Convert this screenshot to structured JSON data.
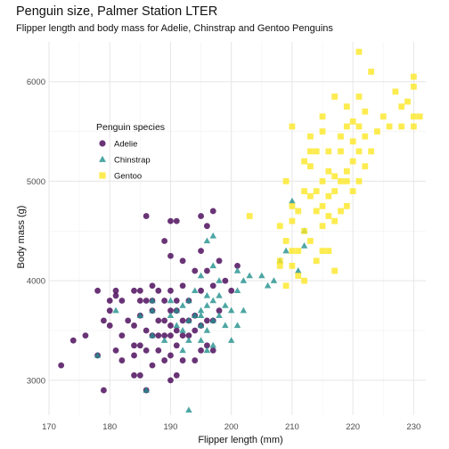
{
  "chart_data": {
    "type": "scatter",
    "title": "Penguin size, Palmer Station LTER",
    "subtitle": "Flipper length and body mass for Adelie, Chinstrap and Gentoo Penguins",
    "xlabel": "Flipper length (mm)",
    "ylabel": "Body mass (g)",
    "xlim": [
      170,
      232
    ],
    "ylim": [
      2650,
      6400
    ],
    "x_ticks": [
      170,
      180,
      190,
      200,
      210,
      220,
      230
    ],
    "y_ticks": [
      3000,
      4000,
      5000,
      6000
    ],
    "grid": true,
    "legend": {
      "title": "Penguin species",
      "placement": "left-center inside plot"
    },
    "series": [
      {
        "name": "Adelie",
        "color": "#440154",
        "marker": "circle",
        "points": [
          [
            172,
            3150
          ],
          [
            174,
            3400
          ],
          [
            176,
            3450
          ],
          [
            178,
            3250
          ],
          [
            178,
            3900
          ],
          [
            179,
            2900
          ],
          [
            179,
            3600
          ],
          [
            180,
            3800
          ],
          [
            180,
            3550
          ],
          [
            180,
            3700
          ],
          [
            181,
            3300
          ],
          [
            181,
            3850
          ],
          [
            181,
            3900
          ],
          [
            182,
            3200
          ],
          [
            182,
            3450
          ],
          [
            182,
            3800
          ],
          [
            183,
            3600
          ],
          [
            184,
            3050
          ],
          [
            184,
            3250
          ],
          [
            184,
            3350
          ],
          [
            184,
            3550
          ],
          [
            184,
            3900
          ],
          [
            185,
            3050
          ],
          [
            185,
            3350
          ],
          [
            185,
            3650
          ],
          [
            185,
            3800
          ],
          [
            185,
            3900
          ],
          [
            186,
            2900
          ],
          [
            186,
            3300
          ],
          [
            186,
            3500
          ],
          [
            186,
            3800
          ],
          [
            186,
            4650
          ],
          [
            187,
            3150
          ],
          [
            187,
            3450
          ],
          [
            187,
            3700
          ],
          [
            187,
            3800
          ],
          [
            187,
            3950
          ],
          [
            188,
            3300
          ],
          [
            188,
            3450
          ],
          [
            188,
            3600
          ],
          [
            188,
            3900
          ],
          [
            189,
            3200
          ],
          [
            189,
            3450
          ],
          [
            189,
            3600
          ],
          [
            189,
            3800
          ],
          [
            189,
            4400
          ],
          [
            190,
            3000
          ],
          [
            190,
            3250
          ],
          [
            190,
            3450
          ],
          [
            190,
            3550
          ],
          [
            190,
            3700
          ],
          [
            190,
            3900
          ],
          [
            190,
            4250
          ],
          [
            190,
            4600
          ],
          [
            191,
            3050
          ],
          [
            191,
            3350
          ],
          [
            191,
            3500
          ],
          [
            191,
            3700
          ],
          [
            191,
            3800
          ],
          [
            191,
            4600
          ],
          [
            192,
            3200
          ],
          [
            192,
            3450
          ],
          [
            192,
            3600
          ],
          [
            192,
            3950
          ],
          [
            192,
            4200
          ],
          [
            193,
            3450
          ],
          [
            193,
            3600
          ],
          [
            193,
            3800
          ],
          [
            194,
            3200
          ],
          [
            194,
            3500
          ],
          [
            194,
            3650
          ],
          [
            194,
            4100
          ],
          [
            195,
            3300
          ],
          [
            195,
            3550
          ],
          [
            195,
            3900
          ],
          [
            195,
            4300
          ],
          [
            195,
            4650
          ],
          [
            196,
            3350
          ],
          [
            196,
            3600
          ],
          [
            196,
            4100
          ],
          [
            196,
            4550
          ],
          [
            197,
            3300
          ],
          [
            197,
            3600
          ],
          [
            197,
            3950
          ],
          [
            197,
            4700
          ],
          [
            198,
            3700
          ],
          [
            198,
            4200
          ],
          [
            199,
            4000
          ],
          [
            200,
            3900
          ],
          [
            201,
            4150
          ]
        ]
      },
      {
        "name": "Chinstrap",
        "color": "#21908C",
        "marker": "triangle",
        "points": [
          [
            178,
            3250
          ],
          [
            181,
            3700
          ],
          [
            185,
            3650
          ],
          [
            186,
            2900
          ],
          [
            187,
            3450
          ],
          [
            187,
            3700
          ],
          [
            187,
            3800
          ],
          [
            189,
            3400
          ],
          [
            190,
            3650
          ],
          [
            190,
            3800
          ],
          [
            191,
            3550
          ],
          [
            191,
            3700
          ],
          [
            192,
            3300
          ],
          [
            192,
            3500
          ],
          [
            192,
            3750
          ],
          [
            193,
            3400
          ],
          [
            193,
            3600
          ],
          [
            193,
            3800
          ],
          [
            194,
            3650
          ],
          [
            194,
            3900
          ],
          [
            195,
            3400
          ],
          [
            195,
            3550
          ],
          [
            195,
            3650
          ],
          [
            195,
            3700
          ],
          [
            195,
            4050
          ],
          [
            196,
            3300
          ],
          [
            196,
            3500
          ],
          [
            196,
            3750
          ],
          [
            196,
            3850
          ],
          [
            196,
            4400
          ],
          [
            197,
            3350
          ],
          [
            197,
            3600
          ],
          [
            197,
            3800
          ],
          [
            197,
            4150
          ],
          [
            197,
            4450
          ],
          [
            198,
            3650
          ],
          [
            198,
            3850
          ],
          [
            198,
            4000
          ],
          [
            199,
            3550
          ],
          [
            199,
            3750
          ],
          [
            200,
            3400
          ],
          [
            200,
            3700
          ],
          [
            201,
            3550
          ],
          [
            201,
            3900
          ],
          [
            201,
            4100
          ],
          [
            202,
            3700
          ],
          [
            202,
            4000
          ],
          [
            203,
            4050
          ],
          [
            205,
            4050
          ],
          [
            206,
            3950
          ],
          [
            207,
            4000
          ],
          [
            208,
            4200
          ],
          [
            209,
            4300
          ],
          [
            210,
            4800
          ],
          [
            211,
            4100
          ],
          [
            212,
            4350
          ],
          [
            212,
            4500
          ],
          [
            193,
            2700
          ]
        ]
      },
      {
        "name": "Gentoo",
        "color": "#FDE725",
        "marker": "square",
        "points": [
          [
            203,
            4650
          ],
          [
            208,
            4550
          ],
          [
            208,
            4200
          ],
          [
            209,
            4400
          ],
          [
            209,
            3950
          ],
          [
            210,
            4150
          ],
          [
            210,
            4300
          ],
          [
            210,
            4600
          ],
          [
            210,
            4750
          ],
          [
            210,
            5550
          ],
          [
            211,
            4050
          ],
          [
            211,
            4300
          ],
          [
            211,
            4700
          ],
          [
            212,
            4900
          ],
          [
            212,
            5200
          ],
          [
            212,
            4500
          ],
          [
            213,
            4400
          ],
          [
            213,
            4850
          ],
          [
            213,
            5150
          ],
          [
            213,
            5450
          ],
          [
            214,
            4700
          ],
          [
            214,
            4900
          ],
          [
            214,
            4200
          ],
          [
            214,
            5300
          ],
          [
            215,
            4550
          ],
          [
            215,
            4750
          ],
          [
            215,
            5000
          ],
          [
            215,
            5500
          ],
          [
            215,
            5650
          ],
          [
            216,
            4300
          ],
          [
            216,
            4650
          ],
          [
            216,
            4850
          ],
          [
            216,
            5100
          ],
          [
            216,
            5300
          ],
          [
            217,
            4600
          ],
          [
            217,
            4900
          ],
          [
            217,
            5050
          ],
          [
            217,
            5850
          ],
          [
            218,
            4700
          ],
          [
            218,
            5000
          ],
          [
            218,
            5300
          ],
          [
            218,
            5450
          ],
          [
            219,
            4750
          ],
          [
            219,
            5100
          ],
          [
            219,
            5550
          ],
          [
            219,
            5750
          ],
          [
            220,
            4900
          ],
          [
            220,
            5200
          ],
          [
            220,
            5400
          ],
          [
            220,
            5600
          ],
          [
            221,
            5000
          ],
          [
            221,
            5300
          ],
          [
            221,
            5550
          ],
          [
            221,
            6300
          ],
          [
            222,
            5150
          ],
          [
            222,
            5450
          ],
          [
            222,
            5700
          ],
          [
            223,
            5300
          ],
          [
            224,
            5500
          ],
          [
            225,
            5650
          ],
          [
            226,
            5550
          ],
          [
            227,
            5900
          ],
          [
            228,
            5550
          ],
          [
            228,
            5750
          ],
          [
            229,
            5800
          ],
          [
            230,
            5550
          ],
          [
            230,
            5950
          ],
          [
            230,
            6050
          ],
          [
            230,
            5650
          ],
          [
            231,
            5650
          ],
          [
            208,
            4150
          ],
          [
            212,
            4000
          ],
          [
            215,
            4300
          ],
          [
            217,
            4100
          ],
          [
            219,
            5000
          ],
          [
            221,
            5850
          ],
          [
            223,
            6100
          ],
          [
            213,
            5300
          ],
          [
            209,
            5000
          ]
        ]
      }
    ]
  }
}
